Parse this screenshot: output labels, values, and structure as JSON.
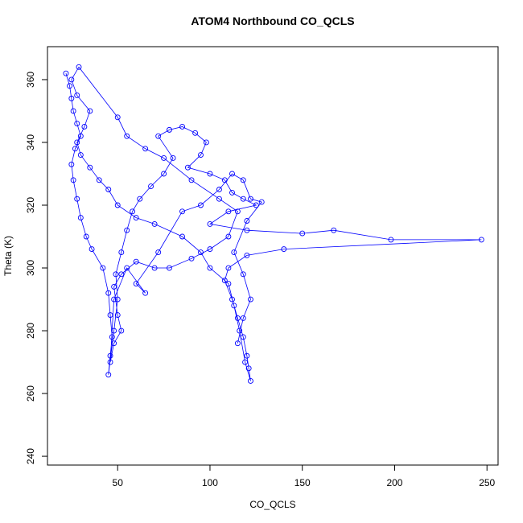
{
  "chart_data": {
    "type": "line",
    "markers": true,
    "title": "ATOM4 Northbound CO_QCLS",
    "x_label": "CO_QCLS",
    "y_label": "Theta (K)",
    "xlim": [
      12,
      256
    ],
    "xticks": [
      50,
      100,
      150,
      200,
      250
    ],
    "ylim": [
      237.2,
      370.5
    ],
    "yticks": [
      240,
      260,
      280,
      300,
      320,
      340,
      360
    ],
    "x": [
      22,
      24,
      25,
      26,
      28,
      30,
      27,
      25,
      26,
      28,
      30,
      33,
      36,
      42,
      45,
      46,
      47,
      46,
      45,
      48,
      50,
      49,
      52,
      55,
      58,
      62,
      68,
      75,
      80,
      72,
      78,
      85,
      92,
      98,
      95,
      88,
      100,
      108,
      112,
      118,
      125,
      110,
      100,
      120,
      150,
      167,
      198,
      247,
      140,
      120,
      110,
      108,
      112,
      115,
      118,
      120,
      121,
      122,
      119,
      116,
      113,
      110,
      100,
      95,
      85,
      70,
      60,
      50,
      45,
      40,
      35,
      30,
      28,
      32,
      35,
      28,
      25,
      29,
      50,
      55,
      65,
      75,
      90,
      105,
      115,
      110,
      100,
      90,
      78,
      70,
      60,
      52,
      48,
      50,
      52,
      48,
      46,
      48,
      55,
      65,
      60,
      72,
      85,
      95,
      105,
      112,
      118,
      122,
      128,
      120,
      113,
      118,
      122,
      118,
      115
    ],
    "series": [
      {
        "name": "Theta",
        "color": "#0000ff",
        "values": [
          362,
          358,
          354,
          350,
          346,
          342,
          338,
          333,
          328,
          322,
          316,
          310,
          306,
          300,
          292,
          285,
          278,
          272,
          266,
          280,
          290,
          298,
          305,
          312,
          318,
          322,
          326,
          330,
          335,
          342,
          344,
          345,
          343,
          340,
          336,
          332,
          330,
          328,
          324,
          322,
          320,
          318,
          314,
          312,
          311,
          312,
          309,
          309,
          306,
          304,
          300,
          296,
          290,
          284,
          278,
          272,
          268,
          264,
          270,
          280,
          288,
          295,
          300,
          305,
          310,
          314,
          316,
          320,
          325,
          328,
          332,
          336,
          340,
          345,
          350,
          355,
          360,
          364,
          348,
          342,
          338,
          335,
          328,
          322,
          318,
          310,
          306,
          303,
          300,
          300,
          302,
          298,
          294,
          285,
          280,
          276,
          270,
          290,
          300,
          292,
          295,
          305,
          318,
          320,
          325,
          330,
          328,
          322,
          321,
          315,
          305,
          298,
          290,
          284,
          276
        ]
      }
    ]
  }
}
